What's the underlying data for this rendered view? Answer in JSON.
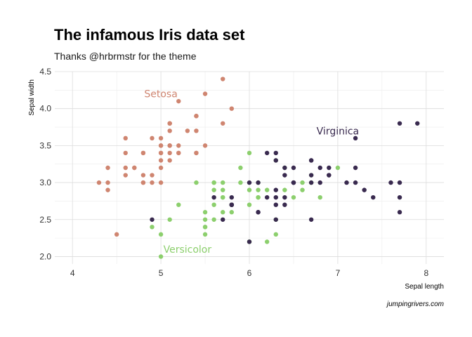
{
  "chart_data": {
    "type": "scatter",
    "title": "The infamous Iris data set",
    "subtitle": "Thanks @hrbrmstr for the theme",
    "xlabel": "Sepal length",
    "ylabel": "Sepal width",
    "caption": "jumpingrivers.com",
    "xlim": [
      3.8,
      8.2
    ],
    "ylim": [
      1.9,
      4.5
    ],
    "xticks": [
      4,
      5,
      6,
      7,
      8
    ],
    "yticks": [
      2.0,
      2.5,
      3.0,
      3.5,
      4.0,
      4.5
    ],
    "xtick_labels": [
      "4",
      "5",
      "6",
      "7",
      "8"
    ],
    "ytick_labels": [
      "2.0",
      "2.5",
      "3.0",
      "3.5",
      "4.0",
      "4.5"
    ],
    "grid": true,
    "legend": "none",
    "series": [
      {
        "name": "Setosa",
        "color": "#cf8570",
        "label_at": [
          5.0,
          4.2
        ],
        "points": [
          [
            4.3,
            3.0
          ],
          [
            4.4,
            2.9
          ],
          [
            4.4,
            3.0
          ],
          [
            4.4,
            3.2
          ],
          [
            4.5,
            2.3
          ],
          [
            4.6,
            3.1
          ],
          [
            4.6,
            3.4
          ],
          [
            4.6,
            3.6
          ],
          [
            4.6,
            3.2
          ],
          [
            4.7,
            3.2
          ],
          [
            4.7,
            3.2
          ],
          [
            4.8,
            3.4
          ],
          [
            4.8,
            3.0
          ],
          [
            4.8,
            3.4
          ],
          [
            4.8,
            3.1
          ],
          [
            4.8,
            3.0
          ],
          [
            4.9,
            3.0
          ],
          [
            4.9,
            3.1
          ],
          [
            4.9,
            3.6
          ],
          [
            5.0,
            3.6
          ],
          [
            5.0,
            3.4
          ],
          [
            5.0,
            3.0
          ],
          [
            5.0,
            3.4
          ],
          [
            5.0,
            3.2
          ],
          [
            5.0,
            3.5
          ],
          [
            5.0,
            3.3
          ],
          [
            5.0,
            3.5
          ],
          [
            5.1,
            3.5
          ],
          [
            5.1,
            3.5
          ],
          [
            5.1,
            3.8
          ],
          [
            5.1,
            3.7
          ],
          [
            5.1,
            3.3
          ],
          [
            5.1,
            3.4
          ],
          [
            5.1,
            3.8
          ],
          [
            5.1,
            3.8
          ],
          [
            5.2,
            3.5
          ],
          [
            5.2,
            3.4
          ],
          [
            5.2,
            4.1
          ],
          [
            5.3,
            3.7
          ],
          [
            5.4,
            3.9
          ],
          [
            5.4,
            3.7
          ],
          [
            5.4,
            3.9
          ],
          [
            5.4,
            3.4
          ],
          [
            5.4,
            3.4
          ],
          [
            5.5,
            4.2
          ],
          [
            5.5,
            3.5
          ],
          [
            5.7,
            4.4
          ],
          [
            5.7,
            3.8
          ],
          [
            5.8,
            4.0
          ],
          [
            5.2,
            3.4
          ]
        ]
      },
      {
        "name": "Versicolor",
        "color": "#8ccf6d",
        "label_at": [
          5.3,
          2.1
        ],
        "points": [
          [
            4.9,
            2.4
          ],
          [
            5.0,
            2.0
          ],
          [
            5.0,
            2.3
          ],
          [
            5.1,
            2.5
          ],
          [
            5.2,
            2.7
          ],
          [
            5.4,
            3.0
          ],
          [
            5.5,
            2.3
          ],
          [
            5.5,
            2.4
          ],
          [
            5.5,
            2.4
          ],
          [
            5.5,
            2.5
          ],
          [
            5.5,
            2.6
          ],
          [
            5.6,
            2.9
          ],
          [
            5.6,
            3.0
          ],
          [
            5.6,
            2.5
          ],
          [
            5.6,
            2.7
          ],
          [
            5.6,
            3.0
          ],
          [
            5.7,
            2.8
          ],
          [
            5.7,
            2.6
          ],
          [
            5.7,
            3.0
          ],
          [
            5.7,
            2.9
          ],
          [
            5.7,
            2.8
          ],
          [
            5.8,
            2.7
          ],
          [
            5.8,
            2.7
          ],
          [
            5.8,
            2.6
          ],
          [
            5.8,
            2.7
          ],
          [
            5.9,
            3.0
          ],
          [
            5.9,
            3.2
          ],
          [
            6.0,
            2.2
          ],
          [
            6.0,
            2.9
          ],
          [
            6.0,
            2.7
          ],
          [
            6.0,
            3.4
          ],
          [
            6.0,
            2.2
          ],
          [
            6.1,
            2.9
          ],
          [
            6.1,
            2.8
          ],
          [
            6.1,
            2.8
          ],
          [
            6.1,
            3.0
          ],
          [
            6.2,
            2.2
          ],
          [
            6.2,
            2.9
          ],
          [
            6.3,
            3.3
          ],
          [
            6.3,
            2.5
          ],
          [
            6.3,
            2.3
          ],
          [
            6.4,
            2.9
          ],
          [
            6.4,
            3.2
          ],
          [
            6.5,
            2.8
          ],
          [
            6.6,
            2.9
          ],
          [
            6.6,
            3.0
          ],
          [
            6.7,
            3.1
          ],
          [
            6.7,
            3.0
          ],
          [
            6.8,
            2.8
          ],
          [
            7.0,
            3.2
          ]
        ]
      },
      {
        "name": "Virginica",
        "color": "#392a4f",
        "label_at": [
          7.0,
          3.7
        ],
        "points": [
          [
            4.9,
            2.5
          ],
          [
            5.6,
            2.8
          ],
          [
            5.7,
            2.5
          ],
          [
            5.8,
            2.7
          ],
          [
            5.8,
            2.8
          ],
          [
            5.8,
            2.7
          ],
          [
            5.8,
            2.7
          ],
          [
            6.0,
            2.2
          ],
          [
            6.0,
            3.0
          ],
          [
            6.1,
            3.0
          ],
          [
            6.1,
            2.6
          ],
          [
            6.2,
            2.8
          ],
          [
            6.2,
            3.4
          ],
          [
            6.3,
            3.3
          ],
          [
            6.3,
            2.9
          ],
          [
            6.3,
            2.5
          ],
          [
            6.3,
            2.7
          ],
          [
            6.3,
            2.8
          ],
          [
            6.3,
            3.4
          ],
          [
            6.4,
            2.7
          ],
          [
            6.4,
            3.2
          ],
          [
            6.4,
            2.8
          ],
          [
            6.4,
            3.1
          ],
          [
            6.5,
            3.0
          ],
          [
            6.5,
            3.2
          ],
          [
            6.5,
            3.0
          ],
          [
            6.5,
            3.0
          ],
          [
            6.7,
            2.5
          ],
          [
            6.7,
            3.3
          ],
          [
            6.7,
            3.1
          ],
          [
            6.7,
            3.0
          ],
          [
            6.7,
            3.3
          ],
          [
            6.8,
            3.0
          ],
          [
            6.8,
            3.2
          ],
          [
            6.9,
            3.1
          ],
          [
            6.9,
            3.2
          ],
          [
            6.9,
            3.1
          ],
          [
            7.1,
            3.0
          ],
          [
            7.2,
            3.6
          ],
          [
            7.2,
            3.2
          ],
          [
            7.2,
            3.0
          ],
          [
            7.3,
            2.9
          ],
          [
            7.4,
            2.8
          ],
          [
            7.6,
            3.0
          ],
          [
            7.7,
            3.8
          ],
          [
            7.7,
            2.6
          ],
          [
            7.7,
            2.8
          ],
          [
            7.7,
            3.0
          ],
          [
            7.9,
            3.8
          ],
          [
            6.1,
            2.6
          ]
        ]
      }
    ]
  }
}
